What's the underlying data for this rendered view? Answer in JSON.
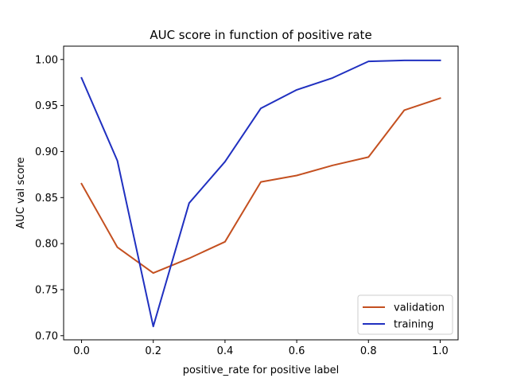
{
  "chart_data": {
    "type": "line",
    "title": "AUC score in function of positive rate",
    "xlabel": "positive_rate for positive label",
    "ylabel": "AUC val score",
    "xlim": [
      -0.05,
      1.05
    ],
    "ylim": [
      0.6955,
      1.0145
    ],
    "xticks": [
      0.0,
      0.2,
      0.4,
      0.6,
      0.8,
      1.0
    ],
    "xtick_labels": [
      "0.0",
      "0.2",
      "0.4",
      "0.6",
      "0.8",
      "1.0"
    ],
    "yticks": [
      0.7,
      0.75,
      0.8,
      0.85,
      0.9,
      0.95,
      1.0
    ],
    "ytick_labels": [
      "0.70",
      "0.75",
      "0.80",
      "0.85",
      "0.90",
      "0.95",
      "1.00"
    ],
    "grid": false,
    "legend_position": "lower-right",
    "x": [
      0.0,
      0.1,
      0.2,
      0.3,
      0.4,
      0.5,
      0.6,
      0.7,
      0.8,
      0.9,
      1.0
    ],
    "series": [
      {
        "name": "validation",
        "color": "#c45020",
        "values": [
          0.865,
          0.796,
          0.768,
          0.784,
          0.802,
          0.867,
          0.874,
          0.885,
          0.894,
          0.945,
          0.958
        ]
      },
      {
        "name": "training",
        "color": "#2030c0",
        "values": [
          0.98,
          0.89,
          0.71,
          0.844,
          0.889,
          0.947,
          0.967,
          0.98,
          0.998,
          0.999,
          0.999
        ]
      }
    ]
  }
}
